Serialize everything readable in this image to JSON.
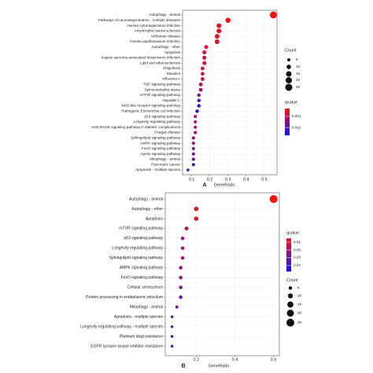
{
  "chart_data": [
    {
      "type": "dot",
      "panel_label": "A",
      "x_label": "GeneRatio",
      "categories": [
        "Autophagy - animal",
        "Pathways of neurodegeneration - multiple diseases",
        "Human cytomegalovirus infection",
        "Amyotrophic lateral sclerosis",
        "Alzheimer disease",
        "Human papillomavirus infection",
        "Autophagy - other",
        "Apoptosis",
        "Kaposi sarcoma-associated herpesvirus infection",
        "Lipid and atherosclerosis",
        "Shigellosis",
        "Measles",
        "Influenza A",
        "TNF signaling pathway",
        "Spinocerebellar ataxia",
        "mTOR signaling pathway",
        "Hepatitis C",
        "NOD-like receptor signaling pathway",
        "Pathogenic Escherichia coli infection",
        "p53 signaling pathway",
        "Longevity regulating pathway",
        "AGE-RAGE signaling pathway in diabetic complications",
        "Chagas disease",
        "Sphingolipid signaling pathway",
        "AMPK signaling pathway",
        "FoxO signaling pathway",
        "Apelin signaling pathway",
        "Mitophagy - animal",
        "Pancreatic cancer",
        "Apoptosis - multiple species"
      ],
      "values": [
        0.55,
        0.3,
        0.25,
        0.25,
        0.24,
        0.24,
        0.18,
        0.17,
        0.17,
        0.17,
        0.16,
        0.16,
        0.16,
        0.15,
        0.15,
        0.14,
        0.14,
        0.14,
        0.13,
        0.12,
        0.12,
        0.12,
        0.12,
        0.11,
        0.11,
        0.11,
        0.11,
        0.11,
        0.11,
        0.08
      ],
      "counts": [
        25,
        13,
        11,
        11,
        11,
        11,
        8,
        8,
        8,
        8,
        7,
        7,
        7,
        7,
        7,
        6,
        6,
        6,
        6,
        5,
        5,
        5,
        5,
        5,
        5,
        5,
        5,
        5,
        5,
        4
      ],
      "qvalues": [
        0.0003,
        0.0004,
        0.0005,
        0.0005,
        0.0005,
        0.0006,
        0.0006,
        0.0006,
        0.0007,
        0.0007,
        0.0007,
        0.0008,
        0.0008,
        0.0009,
        0.0012,
        0.0018,
        0.0022,
        0.0024,
        0.0026,
        0.0009,
        0.001,
        0.0011,
        0.0012,
        0.0013,
        0.0014,
        0.0015,
        0.0016,
        0.0019,
        0.0022,
        0.0026
      ],
      "xlim": [
        0.05,
        0.57
      ],
      "xticks": [
        0.1,
        0.2,
        0.3,
        0.4,
        0.5
      ],
      "grid": true,
      "size_legend": {
        "title": "Count",
        "values": [
          5,
          10,
          15,
          20,
          25
        ]
      },
      "color_legend": {
        "title": "qvalue",
        "clim": [
          0.0003,
          0.0027
        ],
        "ticks": [
          0.001,
          0.002
        ],
        "color_low": "#ff1010",
        "color_high": "#1010ff"
      }
    },
    {
      "type": "dot",
      "panel_label": "B",
      "x_label": "GeneRatio",
      "categories": [
        "Autophagy - animal",
        "Autophagy - other",
        "Apoptosis",
        "mTOR signaling pathway",
        "p53 signaling pathway",
        "Longevity regulating pathway",
        "Sphingolipid signaling pathway",
        "AMPK signaling pathway",
        "FoxO signaling pathway",
        "Cellular senescence",
        "Protein processing in endoplasmic reticulum",
        "Mitophagy - animal",
        "Apoptosis - multiple species",
        "Longevity regulating pathway - multiple species",
        "Platinum drug resistance",
        "EGFR tyrosine kinase inhibitor resistance"
      ],
      "values": [
        0.6,
        0.2,
        0.2,
        0.15,
        0.13,
        0.13,
        0.13,
        0.12,
        0.12,
        0.12,
        0.12,
        0.1,
        0.075,
        0.075,
        0.075,
        0.075
      ],
      "counts": [
        25,
        8,
        8,
        6,
        5,
        5,
        5,
        5,
        5,
        5,
        5,
        4,
        3,
        3,
        3,
        3
      ],
      "qvalues": [
        0.005,
        0.008,
        0.009,
        0.015,
        0.02,
        0.021,
        0.022,
        0.023,
        0.023,
        0.025,
        0.03,
        0.03,
        0.035,
        0.038,
        0.04,
        0.042
      ],
      "xlim": [
        0.04,
        0.63
      ],
      "xticks": [
        0.2,
        0.4,
        0.6
      ],
      "grid": true,
      "size_legend": {
        "title": "Count",
        "values": [
          5,
          10,
          15,
          20,
          25
        ]
      },
      "color_legend": {
        "title": "qvalue",
        "clim": [
          0.005,
          0.048
        ],
        "ticks": [
          0.01,
          0.02,
          0.03,
          0.04
        ],
        "color_low": "#ff1010",
        "color_high": "#1010ff"
      }
    }
  ]
}
